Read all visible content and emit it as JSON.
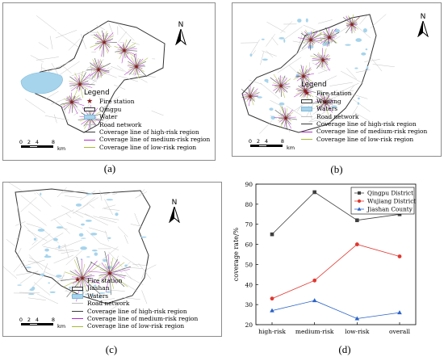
{
  "panels": [
    {
      "caption": "(a)",
      "north_label": "N",
      "legend_title": "Legend",
      "legend_items": [
        {
          "label": "Fire station",
          "symbol": "star"
        },
        {
          "label": "Qingpu",
          "symbol": "boundary"
        },
        {
          "label": "Water",
          "symbol": "water"
        },
        {
          "label": "Road network",
          "symbol": "road"
        },
        {
          "label": "Coverage line of high-risk region",
          "symbol": "line",
          "color": "#3a3a3a"
        },
        {
          "label": "Coverage line of medium-risk region",
          "symbol": "line",
          "color": "#b22cc8"
        },
        {
          "label": "Coverage line of low-risk region",
          "symbol": "line",
          "color": "#a9b83a"
        }
      ],
      "scale_ticks": [
        "0",
        "2",
        "4",
        "8"
      ],
      "scale_unit": "km"
    },
    {
      "caption": "(b)",
      "north_label": "N",
      "legend_title": "Legend",
      "legend_items": [
        {
          "label": "Fire station",
          "symbol": "star"
        },
        {
          "label": "Wujiang",
          "symbol": "boundary"
        },
        {
          "label": "Waters",
          "symbol": "water"
        },
        {
          "label": "Road network",
          "symbol": "road"
        },
        {
          "label": "Coverage line of high-risk region",
          "symbol": "line",
          "color": "#3a3a3a"
        },
        {
          "label": "Coverage line of medium-risk region",
          "symbol": "line",
          "color": "#b22cc8"
        },
        {
          "label": "Coverage line of low-risk region",
          "symbol": "line",
          "color": "#a9b83a"
        }
      ],
      "scale_ticks": [
        "0",
        "2",
        "4",
        "8"
      ],
      "scale_unit": "km"
    },
    {
      "caption": "(c)",
      "north_label": "N",
      "legend_title": "",
      "legend_items": [
        {
          "label": "Fire station",
          "symbol": "star"
        },
        {
          "label": "Jiashan",
          "symbol": "boundary"
        },
        {
          "label": "Waters",
          "symbol": "water"
        },
        {
          "label": "Road network",
          "symbol": "road"
        },
        {
          "label": "Coverage line of high-risk region",
          "symbol": "line",
          "color": "#3a3a3a"
        },
        {
          "label": "Coverage line of medium-risk region",
          "symbol": "line",
          "color": "#b22cc8"
        },
        {
          "label": "Coverage line of low-risk region",
          "symbol": "line",
          "color": "#a9b83a"
        }
      ],
      "scale_ticks": [
        "0",
        "2",
        "4",
        "8"
      ],
      "scale_unit": "km"
    }
  ],
  "chart_caption": "(d)",
  "chart_data": {
    "type": "line",
    "categories": [
      "high-risk",
      "medium-risk",
      "low-risk",
      "overall"
    ],
    "ylabel": "coverage rate/%",
    "xlabel": "",
    "ylim": [
      20,
      90
    ],
    "yticks": [
      20,
      30,
      40,
      50,
      60,
      70,
      80,
      90
    ],
    "grid": false,
    "legend_position": "top-right",
    "series": [
      {
        "name": "Qingpu District",
        "values": [
          65,
          86,
          72,
          75
        ],
        "color": "#404040",
        "marker": "square"
      },
      {
        "name": "Wujiang District",
        "values": [
          33,
          42,
          60,
          54
        ],
        "color": "#e0372f",
        "marker": "circle"
      },
      {
        "name": "Jiashan County",
        "values": [
          27,
          32,
          23,
          26
        ],
        "color": "#2a62c8",
        "marker": "triangle"
      }
    ]
  },
  "colors": {
    "star": "#8b1a1a",
    "water": "#a6d4ec",
    "road": "#c4c4c4",
    "high": "#3a3a3a",
    "medium": "#b22cc8",
    "low": "#a9b83a"
  },
  "icons": [
    "north-arrow-icon",
    "fire-station-star-icon"
  ]
}
